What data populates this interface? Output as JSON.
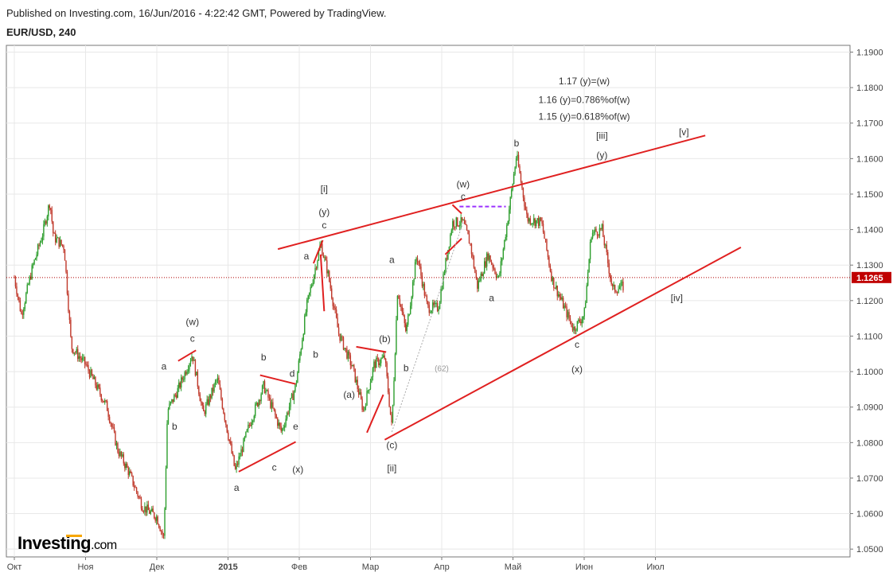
{
  "header": {
    "published": "Published on Investing.com, 16/Jun/2016 - 4:22:42 GMT, Powered by TradingView.",
    "symbol": "EUR/USD, 240"
  },
  "logo": {
    "text": "Investing",
    "suffix": ".com"
  },
  "colors": {
    "up": "#2e9e2e",
    "down": "#c0392b",
    "trendline": "#e02020",
    "price_line": "#b00000",
    "price_tag_bg": "#c00000",
    "fib_line": "#9b30ff",
    "grid": "#e8e8e8"
  },
  "chart_data": {
    "type": "candlestick",
    "x_axis_labels": [
      "Окт",
      "Ноя",
      "Дек",
      "2015",
      "Фев",
      "Мар",
      "Апр",
      "Май",
      "Июн",
      "Июл"
    ],
    "y_axis_labels": [
      "1.1900",
      "1.1800",
      "1.1700",
      "1.1600",
      "1.1500",
      "1.1400",
      "1.1300",
      "1.1200",
      "1.1100",
      "1.1000",
      "1.0900",
      "1.0800",
      "1.0700",
      "1.0600",
      "1.0500"
    ],
    "ylim": [
      1.0478,
      1.1919
    ],
    "xlim": [
      0,
      9.6
    ],
    "current_price": "1.1265",
    "current_price_value": 1.1265,
    "grid": true,
    "price_path": [
      [
        0.0,
        1.1265
      ],
      [
        0.1,
        1.116
      ],
      [
        0.25,
        1.129
      ],
      [
        0.4,
        1.139
      ],
      [
        0.5,
        1.148
      ],
      [
        0.55,
        1.138
      ],
      [
        0.7,
        1.135
      ],
      [
        0.8,
        1.107
      ],
      [
        1.0,
        1.102
      ],
      [
        1.1,
        1.098
      ],
      [
        1.3,
        1.09
      ],
      [
        1.45,
        1.078
      ],
      [
        1.6,
        1.072
      ],
      [
        1.8,
        1.062
      ],
      [
        2.0,
        1.059
      ],
      [
        2.1,
        1.053
      ],
      [
        2.15,
        1.089
      ],
      [
        2.3,
        1.095
      ],
      [
        2.5,
        1.105
      ],
      [
        2.65,
        1.088
      ],
      [
        2.85,
        1.098
      ],
      [
        3.1,
        1.072
      ],
      [
        3.3,
        1.085
      ],
      [
        3.5,
        1.096
      ],
      [
        3.75,
        1.083
      ],
      [
        3.95,
        1.096
      ],
      [
        4.1,
        1.118
      ],
      [
        4.3,
        1.136
      ],
      [
        4.4,
        1.128
      ],
      [
        4.55,
        1.111
      ],
      [
        4.75,
        1.101
      ],
      [
        4.9,
        1.089
      ],
      [
        5.05,
        1.102
      ],
      [
        5.2,
        1.104
      ],
      [
        5.3,
        1.084
      ],
      [
        5.38,
        1.123
      ],
      [
        5.5,
        1.111
      ],
      [
        5.65,
        1.133
      ],
      [
        5.8,
        1.118
      ],
      [
        5.95,
        1.118
      ],
      [
        6.15,
        1.142
      ],
      [
        6.3,
        1.142
      ],
      [
        6.4,
        1.136
      ],
      [
        6.5,
        1.124
      ],
      [
        6.65,
        1.133
      ],
      [
        6.8,
        1.126
      ],
      [
        6.92,
        1.142
      ],
      [
        7.05,
        1.161
      ],
      [
        7.2,
        1.143
      ],
      [
        7.4,
        1.142
      ],
      [
        7.55,
        1.126
      ],
      [
        7.7,
        1.119
      ],
      [
        7.85,
        1.112
      ],
      [
        8.0,
        1.116
      ],
      [
        8.1,
        1.139
      ],
      [
        8.25,
        1.14
      ],
      [
        8.4,
        1.123
      ],
      [
        8.55,
        1.124
      ]
    ],
    "annotations": [
      {
        "text": "1.17 (y)=(w)",
        "x": 8.0,
        "y": 1.1818
      },
      {
        "text": "1.16 (y)=0.786%of(w)",
        "x": 8.0,
        "y": 1.1765
      },
      {
        "text": "1.15 (y)=0.618%of(w)",
        "x": 8.0,
        "y": 1.1718
      },
      {
        "text": "[iii]",
        "x": 8.25,
        "y": 1.1665
      },
      {
        "text": "(y)",
        "x": 8.25,
        "y": 1.161
      },
      {
        "text": "[v]",
        "x": 9.4,
        "y": 1.1675
      },
      {
        "text": "b",
        "x": 7.05,
        "y": 1.1643
      },
      {
        "text": "(w)",
        "x": 6.3,
        "y": 1.1528
      },
      {
        "text": "c",
        "x": 6.3,
        "y": 1.1493
      },
      {
        "text": "[i]",
        "x": 4.35,
        "y": 1.1515
      },
      {
        "text": "(y)",
        "x": 4.35,
        "y": 1.145
      },
      {
        "text": "c",
        "x": 4.35,
        "y": 1.1412
      },
      {
        "text": "a",
        "x": 4.1,
        "y": 1.1325
      },
      {
        "text": "b",
        "x": 4.23,
        "y": 1.1048
      },
      {
        "text": "a",
        "x": 5.3,
        "y": 1.1315
      },
      {
        "text": "(b)",
        "x": 5.2,
        "y": 1.1092
      },
      {
        "text": "b",
        "x": 5.5,
        "y": 1.101
      },
      {
        "text": "(62)",
        "x": 6.0,
        "y": 1.101
      },
      {
        "text": "(a)",
        "x": 4.7,
        "y": 1.0935
      },
      {
        "text": "(c)",
        "x": 5.3,
        "y": 1.0793
      },
      {
        "text": "[ii]",
        "x": 5.3,
        "y": 1.0728
      },
      {
        "text": "a",
        "x": 6.7,
        "y": 1.1208
      },
      {
        "text": "c",
        "x": 7.9,
        "y": 1.1076
      },
      {
        "text": "(x)",
        "x": 7.9,
        "y": 1.1007
      },
      {
        "text": "[iv]",
        "x": 9.3,
        "y": 1.1208
      },
      {
        "text": "(w)",
        "x": 2.5,
        "y": 1.114
      },
      {
        "text": "c",
        "x": 2.5,
        "y": 1.1093
      },
      {
        "text": "a",
        "x": 2.1,
        "y": 1.1015
      },
      {
        "text": "b",
        "x": 2.25,
        "y": 1.0845
      },
      {
        "text": "b",
        "x": 3.5,
        "y": 1.104
      },
      {
        "text": "d",
        "x": 3.9,
        "y": 1.0995
      },
      {
        "text": "c",
        "x": 3.65,
        "y": 1.073
      },
      {
        "text": "e",
        "x": 3.95,
        "y": 1.0845
      },
      {
        "text": "(x)",
        "x": 3.98,
        "y": 1.0725
      },
      {
        "text": "a",
        "x": 3.12,
        "y": 1.0673
      }
    ],
    "trendlines": [
      {
        "x1": 3.7,
        "y1": 1.1345,
        "x2": 9.7,
        "y2": 1.1665
      },
      {
        "x1": 5.2,
        "y1": 1.0808,
        "x2": 10.2,
        "y2": 1.135
      },
      {
        "x1": 2.3,
        "y1": 1.103,
        "x2": 2.55,
        "y2": 1.106
      },
      {
        "x1": 3.15,
        "y1": 1.0718,
        "x2": 3.95,
        "y2": 1.0802
      },
      {
        "x1": 3.45,
        "y1": 1.099,
        "x2": 3.95,
        "y2": 1.0965
      },
      {
        "x1": 4.8,
        "y1": 1.107,
        "x2": 5.22,
        "y2": 1.1055
      },
      {
        "x1": 4.95,
        "y1": 1.0828,
        "x2": 5.18,
        "y2": 1.0935
      },
      {
        "x1": 4.2,
        "y1": 1.1305,
        "x2": 4.33,
        "y2": 1.137
      },
      {
        "x1": 4.3,
        "y1": 1.133,
        "x2": 4.35,
        "y2": 1.117
      },
      {
        "x1": 6.15,
        "y1": 1.147,
        "x2": 6.28,
        "y2": 1.1445
      },
      {
        "x1": 6.05,
        "y1": 1.133,
        "x2": 6.28,
        "y2": 1.1375
      }
    ],
    "fib_line": {
      "x1": 6.25,
      "x2": 6.9,
      "y": 1.1465
    },
    "dotted_line": {
      "x1": 5.3,
      "y1": 1.083,
      "x2": 6.3,
      "y2": 1.142
    }
  }
}
